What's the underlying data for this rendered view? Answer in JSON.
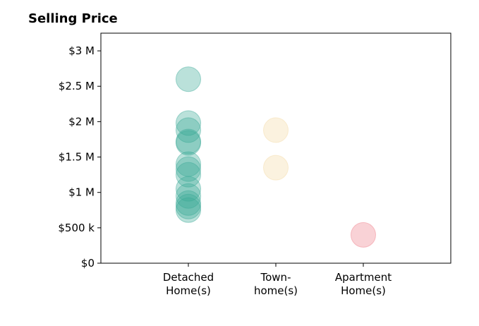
{
  "chart_data": {
    "type": "scatter",
    "title": "Selling Price",
    "xlabel": "",
    "ylabel": "",
    "categories": [
      [
        "Detached",
        "Home(s)"
      ],
      [
        "Town-",
        "home(s)"
      ],
      [
        "Apartment",
        "Home(s)"
      ]
    ],
    "y_ticks": [
      {
        "value": 0,
        "label": "$0"
      },
      {
        "value": 500000,
        "label": "$500 k"
      },
      {
        "value": 1000000,
        "label": "$1 M"
      },
      {
        "value": 1500000,
        "label": "$1.5 M"
      },
      {
        "value": 2000000,
        "label": "$2 M"
      },
      {
        "value": 2500000,
        "label": "$2.5 M"
      },
      {
        "value": 3000000,
        "label": "$3 M"
      }
    ],
    "ylim": [
      0,
      3250000
    ],
    "xlim": [
      -1,
      3
    ],
    "grid": false,
    "series": [
      {
        "category_index": 0,
        "color": "#3aa896",
        "values": [
          2600000,
          1980000,
          1880000,
          1720000,
          1700000,
          1400000,
          1330000,
          1250000,
          1050000,
          950000,
          850000,
          800000,
          750000
        ]
      },
      {
        "category_index": 1,
        "color": "#f3d9a4",
        "values": [
          1880000,
          1350000
        ]
      },
      {
        "category_index": 2,
        "color": "#ef7f8a",
        "values": [
          400000
        ]
      }
    ]
  }
}
